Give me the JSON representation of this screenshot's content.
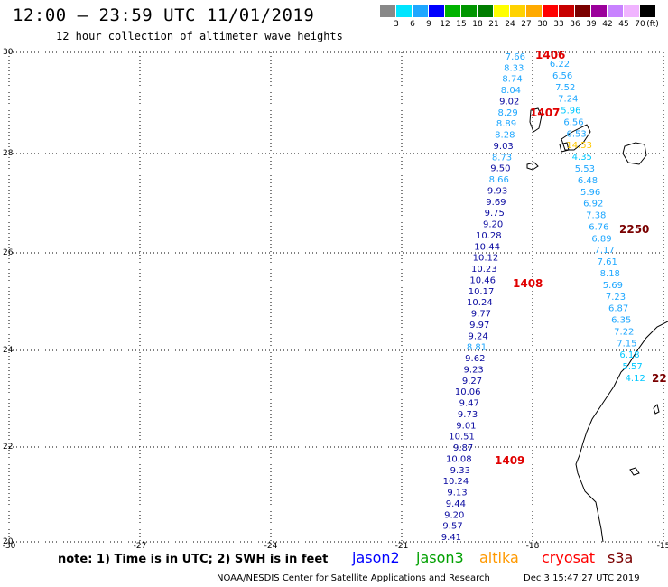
{
  "header": {
    "title": "12:00 — 23:59 UTC 11/01/2019",
    "subtitle": "12 hour collection of altimeter wave heights"
  },
  "legend": {
    "unit": "(ft)",
    "colors": [
      "#888888",
      "#00e5ff",
      "#1ea7ff",
      "#0000ff",
      "#00b400",
      "#009600",
      "#007d00",
      "#ffff00",
      "#ffd200",
      "#ffaa00",
      "#ff0000",
      "#c80000",
      "#7a0000",
      "#9b009b",
      "#c882ff",
      "#f0b4ff",
      "#000000"
    ],
    "labels": [
      "3",
      "6",
      "9",
      "12",
      "15",
      "18",
      "21",
      "24",
      "27",
      "30",
      "33",
      "36",
      "39",
      "42",
      "45",
      "70"
    ]
  },
  "axes": {
    "lon_labels": [
      "-30",
      "-27",
      "-24",
      "-21",
      "-18",
      "-15"
    ],
    "lat_labels": [
      "30",
      "28",
      "26",
      "24",
      "22",
      "20"
    ]
  },
  "tracks": [
    {
      "satellite": "cryosat",
      "color": "#0a0aa0",
      "values": [
        "7.66",
        "8.33",
        "8.74",
        "8.04",
        "9.02",
        "8.29",
        "8.89",
        "8.28",
        "9.03",
        "8.73",
        "9.50",
        "8.66",
        "9.93",
        "9.69",
        "9.75",
        "9.20",
        "10.28",
        "10.44",
        "10.12",
        "10.23",
        "10.46",
        "10.17",
        "10.24",
        "9.77",
        "9.97",
        "9.24",
        "8.81",
        "9.62",
        "9.23",
        "9.27",
        "10.06",
        "9.47",
        "9.73",
        "9.01",
        "10.51",
        "9.87",
        "10.08",
        "9.33",
        "10.24",
        "9.13",
        "9.44",
        "9.20",
        "9.57",
        "9.41"
      ],
      "value_colors": [
        "#1ea7ff",
        "#1ea7ff",
        "#1ea7ff",
        "#1ea7ff",
        "#0a0aa0",
        "#1ea7ff",
        "#1ea7ff",
        "#1ea7ff",
        "#0a0aa0",
        "#1ea7ff",
        "#0a0aa0",
        "#1ea7ff",
        "#0a0aa0",
        "#0a0aa0",
        "#0a0aa0",
        "#0a0aa0",
        "#0a0aa0",
        "#0a0aa0",
        "#0a0aa0",
        "#0a0aa0",
        "#0a0aa0",
        "#0a0aa0",
        "#0a0aa0",
        "#0a0aa0",
        "#0a0aa0",
        "#0a0aa0",
        "#1ea7ff",
        "#0a0aa0",
        "#0a0aa0",
        "#0a0aa0",
        "#0a0aa0",
        "#0a0aa0",
        "#0a0aa0",
        "#0a0aa0",
        "#0a0aa0",
        "#0a0aa0",
        "#0a0aa0",
        "#0a0aa0",
        "#0a0aa0",
        "#0a0aa0",
        "#0a0aa0",
        "#0a0aa0",
        "#0a0aa0",
        "#0a0aa0"
      ]
    },
    {
      "satellite": "s3a",
      "color": "#1ea7ff",
      "values": [
        "6.22",
        "6.56",
        "7.52",
        "7.24",
        "5.96",
        "6.56",
        "6.53",
        "14.53",
        "4.35",
        "5.53",
        "6.48",
        "5.96",
        "6.92",
        "7.38",
        "6.76",
        "6.89",
        "7.17",
        "7.61",
        "8.18",
        "5.69",
        "7.23",
        "6.87",
        "6.35",
        "7.22",
        "7.15",
        "6.18",
        "5.57",
        "4.12"
      ],
      "value_colors": [
        "#1ea7ff",
        "#1ea7ff",
        "#1ea7ff",
        "#1ea7ff",
        "#00c8ff",
        "#1ea7ff",
        "#1ea7ff",
        "#ffc800",
        "#00c8ff",
        "#1ea7ff",
        "#1ea7ff",
        "#1ea7ff",
        "#1ea7ff",
        "#1ea7ff",
        "#1ea7ff",
        "#1ea7ff",
        "#1ea7ff",
        "#1ea7ff",
        "#1ea7ff",
        "#1ea7ff",
        "#1ea7ff",
        "#1ea7ff",
        "#1ea7ff",
        "#1ea7ff",
        "#1ea7ff",
        "#00c8ff",
        "#00c8ff",
        "#00c8ff"
      ]
    }
  ],
  "time_labels": [
    {
      "text": "1406",
      "color": "#e00000"
    },
    {
      "text": "1407",
      "color": "#e00000"
    },
    {
      "text": "1408",
      "color": "#e00000"
    },
    {
      "text": "1409",
      "color": "#e00000"
    },
    {
      "text": "2250",
      "color": "#7a0000"
    },
    {
      "text": "22",
      "color": "#7a0000"
    }
  ],
  "footer": {
    "note": "note: 1) Time is in UTC; 2) SWH is in feet",
    "satellites": [
      {
        "name": "jason2",
        "color": "#0000ff"
      },
      {
        "name": "jason3",
        "color": "#00a000"
      },
      {
        "name": "altika",
        "color": "#ff9900"
      },
      {
        "name": "cryosat",
        "color": "#ff0000"
      },
      {
        "name": "s3a",
        "color": "#7a0000"
      }
    ],
    "credit": "NOAA/NESDIS Center for Satellite Applications and Research",
    "timestamp": "Dec  3 15:47:27 UTC 2019"
  }
}
